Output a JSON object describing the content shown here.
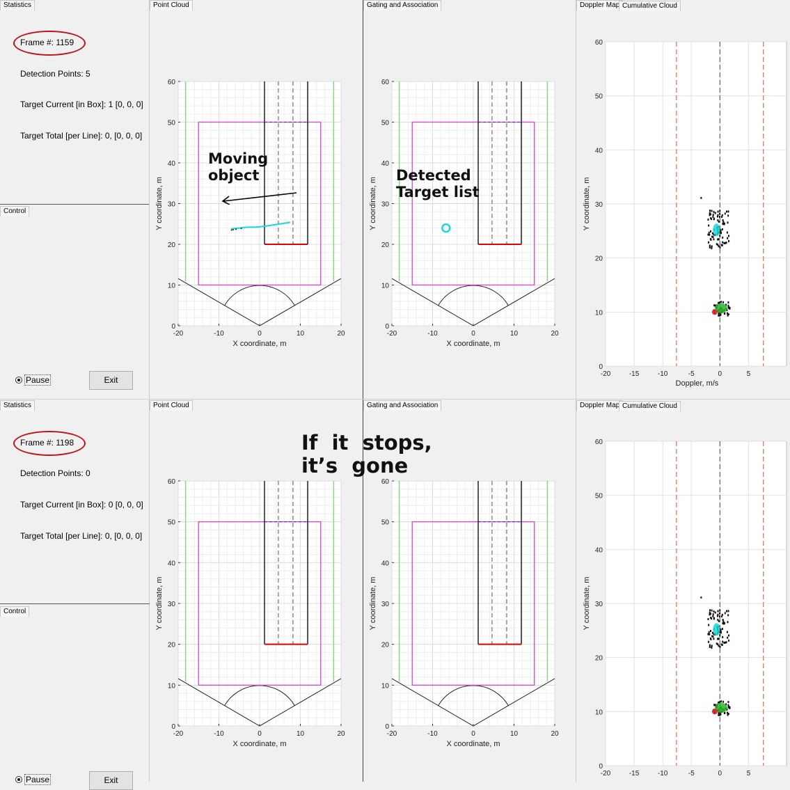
{
  "tabs": {
    "statistics": "Statistics",
    "point_cloud": "Point Cloud",
    "gating": "Gating and Association",
    "doppler": "Doppler Map",
    "cumulative": "Cumulative Cloud",
    "control": "Control"
  },
  "top": {
    "frame": "Frame #: 1159",
    "detection_points": "Detection Points: 5",
    "target_current": "Target Current [in Box]: 1 [0, 0, 0]",
    "target_total": "Target Total [per Line]: 0, [0, 0, 0]",
    "pause_label": "Pause",
    "exit_label": "Exit"
  },
  "bottom": {
    "frame": "Frame #: 1198",
    "detection_points": "Detection Points: 0",
    "target_current": "Target Current [in Box]: 0 [0, 0, 0]",
    "target_total": "Target Total [per Line]: 0, [0, 0, 0]",
    "pause_label": "Pause",
    "exit_label": "Exit"
  },
  "annotations": {
    "moving_object": "Moving\nobject",
    "detected_target": "Detected\nTarget list",
    "stops": "If  it  stops,\nit’s  gone"
  },
  "scene_axes": {
    "xlabel": "X coordinate, m",
    "ylabel": "Y coordinate, m",
    "xticks": [
      "-20",
      "-10",
      "0",
      "10",
      "20"
    ],
    "yticks": [
      "0",
      "10",
      "20",
      "30",
      "40",
      "50",
      "60"
    ]
  },
  "doppler_axes": {
    "xlabel": "Doppler, m/s",
    "ylabel": "Y coordinate, m",
    "xticks": [
      "-20",
      "-15",
      "-10",
      "-5",
      "0",
      "5"
    ],
    "yticks": [
      "0",
      "10",
      "20",
      "30",
      "40",
      "50",
      "60"
    ]
  },
  "colors": {
    "annotation_oval": "#c0121a",
    "fov_green": "#7fd97f",
    "box_magenta": "#e040e0",
    "lane_red": "#e00000",
    "track_cyan": "#19d8d8",
    "doppler_boundary": "#e8765a"
  }
}
